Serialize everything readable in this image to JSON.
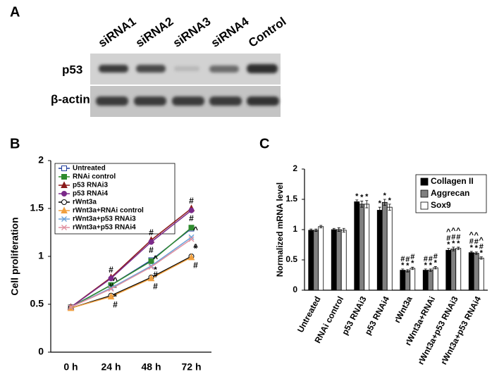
{
  "panels": {
    "a": "A",
    "b": "B",
    "c": "C"
  },
  "blot": {
    "lanes": [
      "siRNA1",
      "siRNA2",
      "siRNA3",
      "siRNA4",
      "Control"
    ],
    "rows": [
      "p53",
      "β-actin"
    ]
  },
  "chart_data": [
    {
      "type": "line",
      "y_label": "Cell proliferation",
      "categories": [
        "0 h",
        "24 h",
        "48 h",
        "72 h"
      ],
      "ylim": [
        0,
        2
      ],
      "yticks": [
        0,
        0.5,
        1,
        1.5,
        2
      ],
      "grid": false,
      "legend": "upper left",
      "series": [
        {
          "name": "Untreated",
          "color": "#1f3c9c",
          "marker": "square-open",
          "values": [
            0.47,
            0.7,
            0.96,
            1.29
          ],
          "labels": [
            null,
            null,
            null,
            null
          ]
        },
        {
          "name": "RNAi control",
          "color": "#2e8b2e",
          "marker": "square",
          "values": [
            0.47,
            0.7,
            0.95,
            1.3
          ],
          "labels": [
            null,
            null,
            null,
            null
          ]
        },
        {
          "name": "p53 RNAi3",
          "color": "#8b1a1a",
          "marker": "triangle",
          "values": [
            0.47,
            0.78,
            1.17,
            1.5
          ],
          "labels": [
            null,
            "#",
            "#",
            "#"
          ]
        },
        {
          "name": "p53 RNAi4",
          "color": "#7b2a8a",
          "marker": "circle",
          "values": [
            0.47,
            0.77,
            1.15,
            1.48
          ],
          "labels": [
            null,
            "#",
            "#",
            "#"
          ]
        },
        {
          "name": "rWnt3a",
          "color": "#000000",
          "marker": "circle-open",
          "values": [
            0.46,
            0.59,
            0.78,
            1.0
          ],
          "labels": [
            null,
            "*",
            "*",
            "*"
          ]
        },
        {
          "name": "rWnt3a+RNAi control",
          "color": "#f0a040",
          "marker": "triangle",
          "values": [
            0.46,
            0.58,
            0.77,
            0.99
          ],
          "labels": [
            null,
            "#",
            "#",
            "#"
          ]
        },
        {
          "name": "rWnt3a+p53 RNAi3",
          "color": "#6aa0d8",
          "marker": "x",
          "values": [
            0.47,
            0.67,
            0.9,
            1.2
          ],
          "labels": [
            null,
            "^",
            "^",
            "^"
          ]
        },
        {
          "name": "rWnt3a+p53 RNAi4",
          "color": "#e090a0",
          "marker": "x",
          "values": [
            0.47,
            0.66,
            0.89,
            1.18
          ],
          "labels": [
            null,
            "*",
            "#",
            "^"
          ]
        }
      ]
    },
    {
      "type": "bar",
      "y_label": "Normalized mRNA level",
      "categories": [
        "Untreated",
        "RNAi control",
        "p53 RNAi3",
        "p53 RNAi4",
        "rWnt3a",
        "rWnt3a+RNAi",
        "rWnt3a+p53 RNAi3",
        "rWnt3a+p53 RNAi4"
      ],
      "ylim": [
        0,
        2
      ],
      "yticks": [
        0,
        0.5,
        1,
        1.5,
        2
      ],
      "grid": false,
      "legend": "upper right",
      "series": [
        {
          "name": "Collagen II",
          "color": "#000000",
          "values": [
            0.99,
            1.0,
            1.46,
            1.32,
            0.33,
            0.33,
            0.66,
            0.62
          ],
          "errors": [
            0.02,
            0.02,
            0.03,
            0.05,
            0.02,
            0.02,
            0.03,
            0.02
          ],
          "labels": [
            [],
            [],
            [
              "*"
            ],
            [
              "*"
            ],
            [
              "#",
              "*"
            ],
            [
              "#",
              "*"
            ],
            [
              "^",
              "#",
              "*"
            ],
            [
              "^",
              "#",
              "*"
            ]
          ]
        },
        {
          "name": "Aggrecan",
          "color": "#808080",
          "values": [
            0.99,
            1.0,
            1.42,
            1.45,
            0.32,
            0.33,
            0.68,
            0.61
          ],
          "errors": [
            0.02,
            0.03,
            0.05,
            0.05,
            0.02,
            0.02,
            0.03,
            0.02
          ],
          "labels": [
            [],
            [],
            [
              "*"
            ],
            [
              "*"
            ],
            [
              "#",
              "*"
            ],
            [
              "#",
              "*"
            ],
            [
              "^",
              "#",
              "*"
            ],
            [
              "^",
              "#",
              "*"
            ]
          ]
        },
        {
          "name": "Sox9",
          "color": "#ffffff",
          "values": [
            1.05,
            0.99,
            1.42,
            1.37,
            0.36,
            0.37,
            0.69,
            0.53
          ],
          "errors": [
            0.02,
            0.03,
            0.06,
            0.05,
            0.02,
            0.02,
            0.02,
            0.02
          ],
          "labels": [
            [],
            [],
            [
              "*"
            ],
            [
              "*"
            ],
            [
              "#",
              "*"
            ],
            [
              "#",
              "*"
            ],
            [
              "^",
              "#",
              "*"
            ],
            [
              "^",
              "#",
              "*"
            ]
          ]
        }
      ]
    }
  ]
}
